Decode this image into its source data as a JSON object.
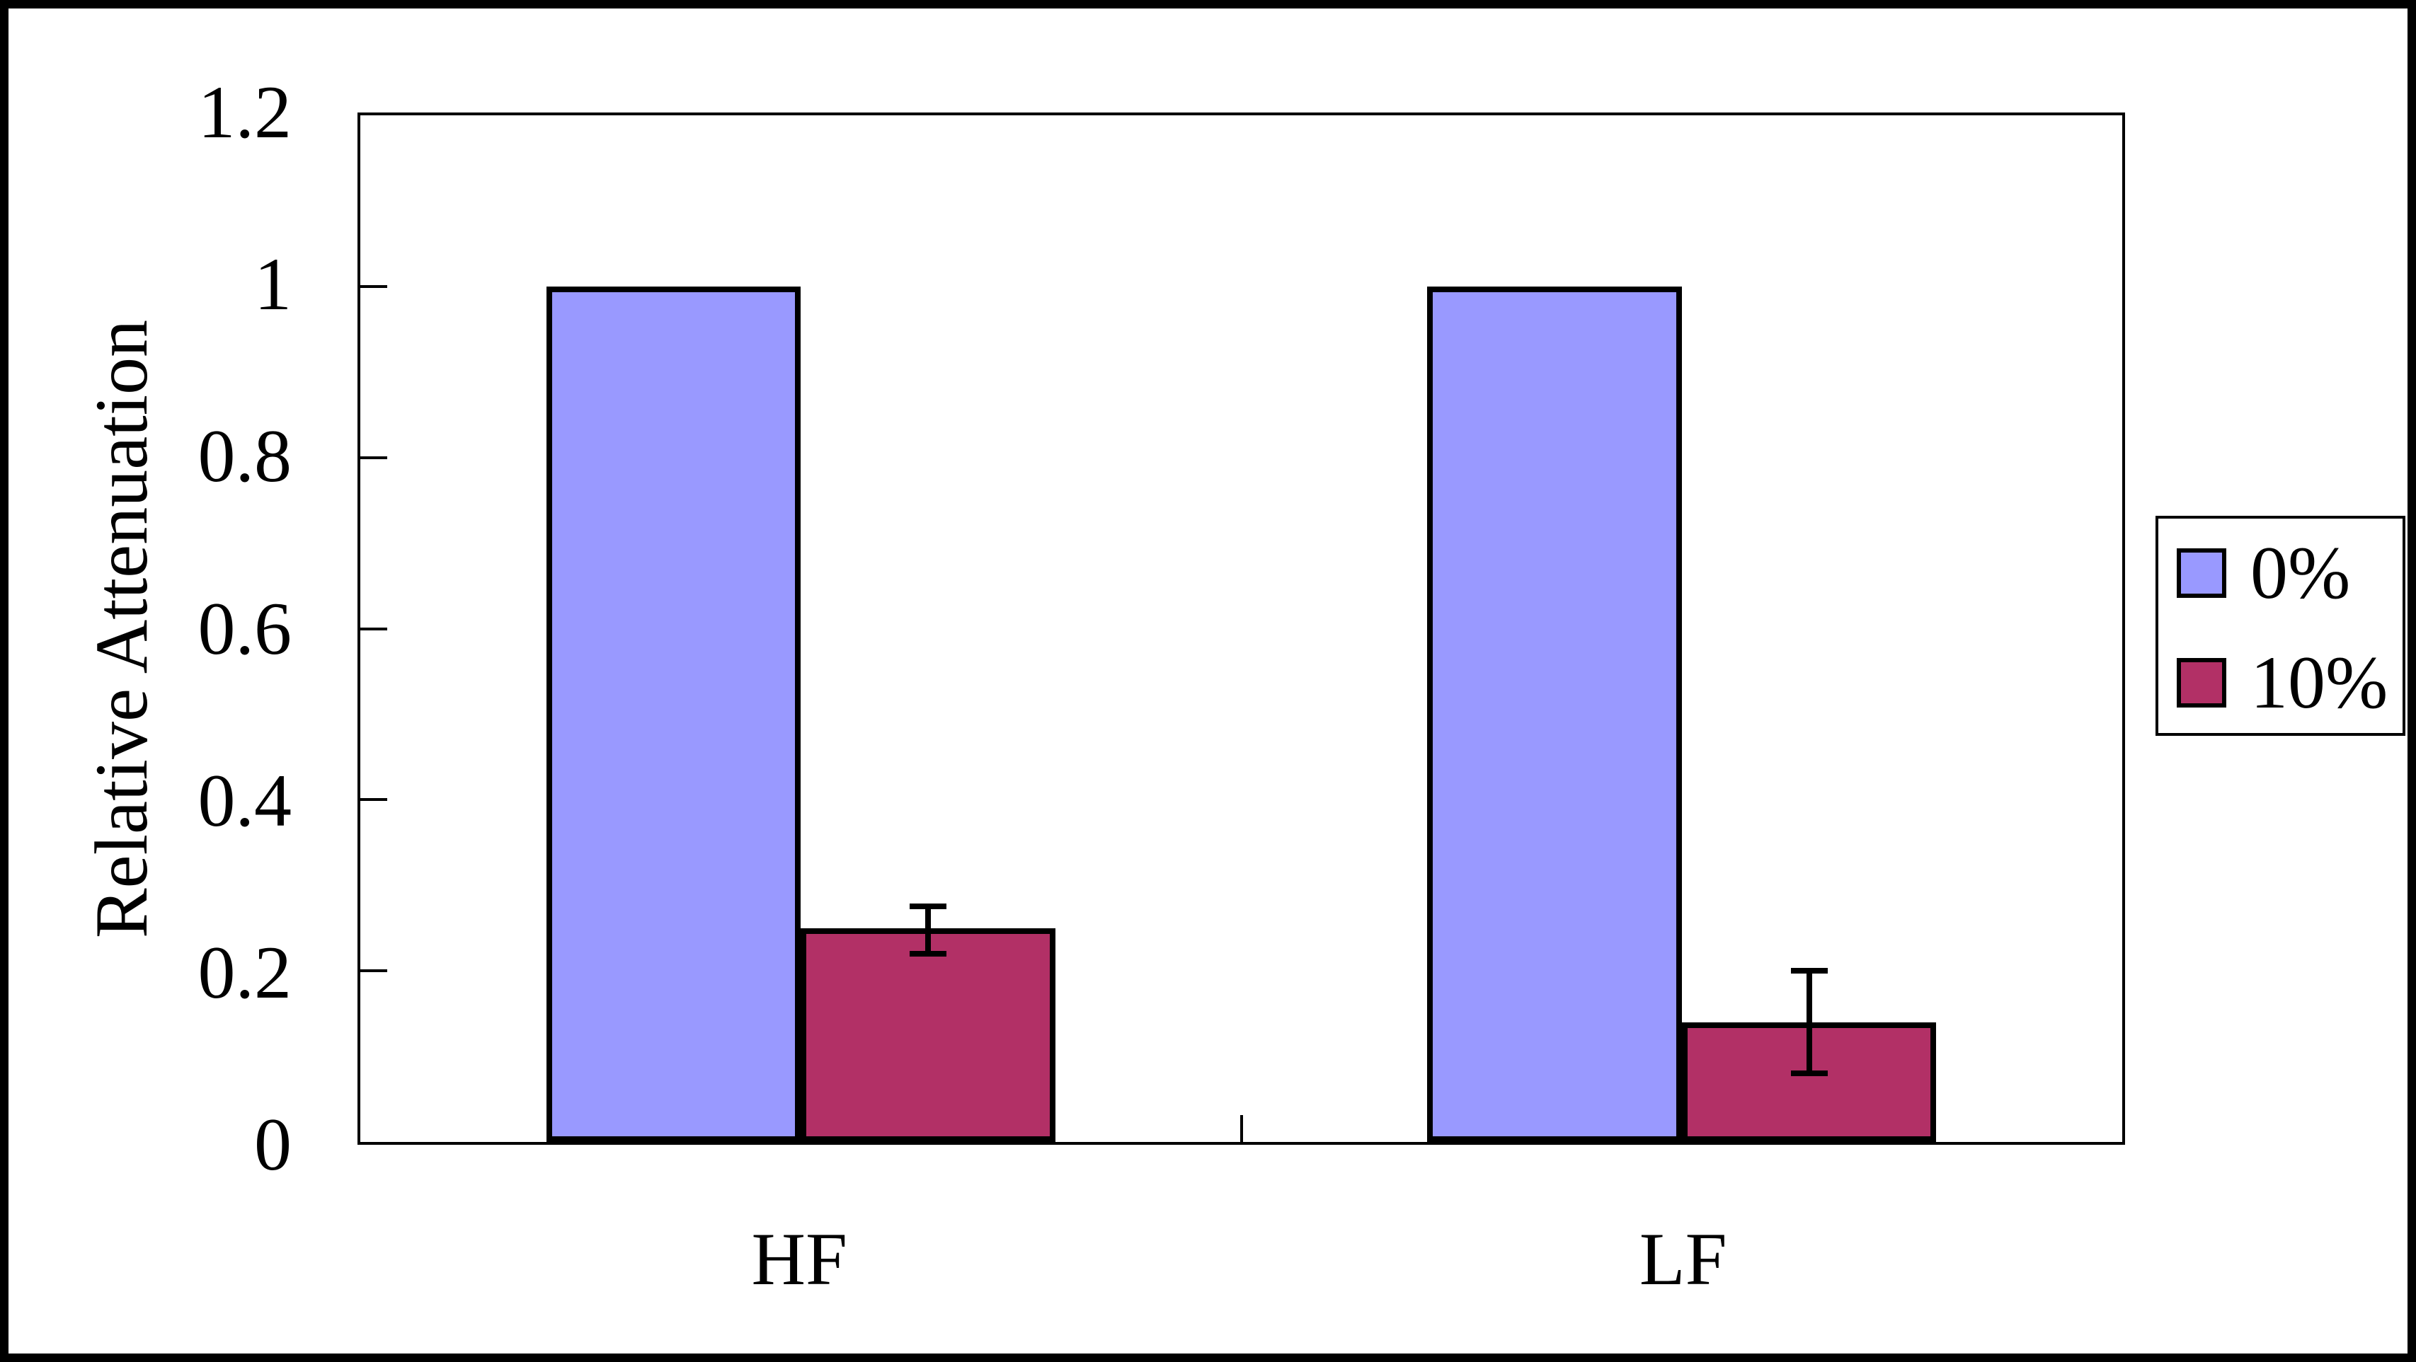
{
  "window": {
    "background": "#FFFFFF",
    "frame_border_color": "#000000"
  },
  "colors": {
    "series_0pct": "#9999FF",
    "series_10pct": "#B23066",
    "axis": "#000000"
  },
  "chart_data": {
    "type": "bar",
    "title": "",
    "xlabel": "",
    "ylabel": "Relative Attenuation",
    "categories": [
      "HF",
      "LF"
    ],
    "series": [
      {
        "name": "0%",
        "color": "#9999FF",
        "values": [
          1.0,
          1.0
        ],
        "errors": [
          null,
          null
        ]
      },
      {
        "name": "10%",
        "color": "#B23066",
        "values": [
          0.25,
          0.14
        ],
        "errors": [
          {
            "top": 0.275,
            "bottom": 0.22
          },
          {
            "top": 0.2,
            "bottom": 0.08
          }
        ]
      }
    ],
    "ylim": [
      0,
      1.2
    ],
    "ytick_step": 0.2,
    "yticks": [
      {
        "value": 1.2,
        "label": "1.2"
      },
      {
        "value": 1.0,
        "label": "1"
      },
      {
        "value": 0.8,
        "label": "0.8"
      },
      {
        "value": 0.6,
        "label": "0.6"
      },
      {
        "value": 0.4,
        "label": "0.4"
      },
      {
        "value": 0.2,
        "label": "0.2"
      },
      {
        "value": 0.0,
        "label": "0"
      }
    ],
    "grid": false,
    "legend_position": "right",
    "layout": {
      "bar_width_frac": 0.1445
    }
  }
}
